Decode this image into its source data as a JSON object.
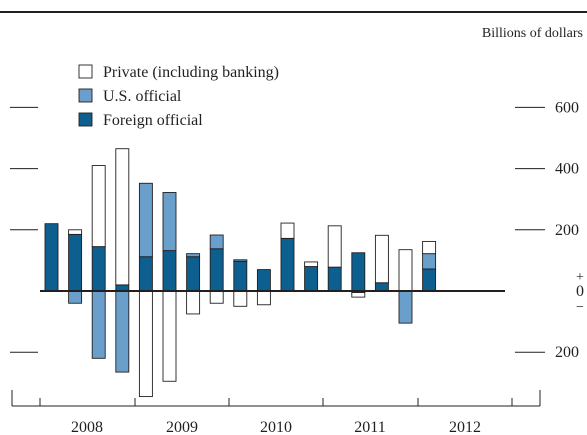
{
  "chart_data": {
    "type": "bar",
    "stacked": true,
    "unit_label": "Billions of dollars",
    "x": [
      "2008 Q1",
      "2008 Q2",
      "2008 Q3",
      "2008 Q4",
      "2009 Q1",
      "2009 Q2",
      "2009 Q3",
      "2009 Q4",
      "2010 Q1",
      "2010 Q2",
      "2010 Q3",
      "2010 Q4",
      "2011 Q1",
      "2011 Q2",
      "2011 Q3",
      "2011 Q4",
      "2012 Q1",
      "2012 Q2"
    ],
    "year_labels": [
      "2008",
      "2009",
      "2010",
      "2011",
      "2012"
    ],
    "series": [
      {
        "name": "Private (including banking)",
        "color": "#ffffff",
        "values": [
          0,
          15,
          265,
          445,
          -345,
          -295,
          -75,
          -40,
          -50,
          -45,
          50,
          15,
          135,
          -15,
          155,
          135,
          40,
          null
        ]
      },
      {
        "name": "U.S. official",
        "color": "#6a9fcc",
        "values": [
          0,
          -40,
          -220,
          -265,
          240,
          190,
          10,
          45,
          5,
          0,
          0,
          0,
          0,
          -5,
          0,
          -105,
          50,
          null
        ]
      },
      {
        "name": "Foreign official",
        "color": "#0d5f8f",
        "values": [
          220,
          185,
          145,
          20,
          112,
          132,
          112,
          138,
          97,
          70,
          172,
          80,
          78,
          125,
          27,
          0,
          72,
          null
        ]
      }
    ],
    "y_ticks": [
      {
        "value": 600,
        "label": "600"
      },
      {
        "value": 400,
        "label": "400"
      },
      {
        "value": 200,
        "label": "200"
      },
      {
        "value": 0,
        "label": "0"
      },
      {
        "value": -200,
        "label": "200"
      }
    ],
    "zero_signs": {
      "plus": "+",
      "minus": "−"
    },
    "ylim": [
      -350,
      820
    ],
    "legend_position": "top-left",
    "grid": false
  }
}
